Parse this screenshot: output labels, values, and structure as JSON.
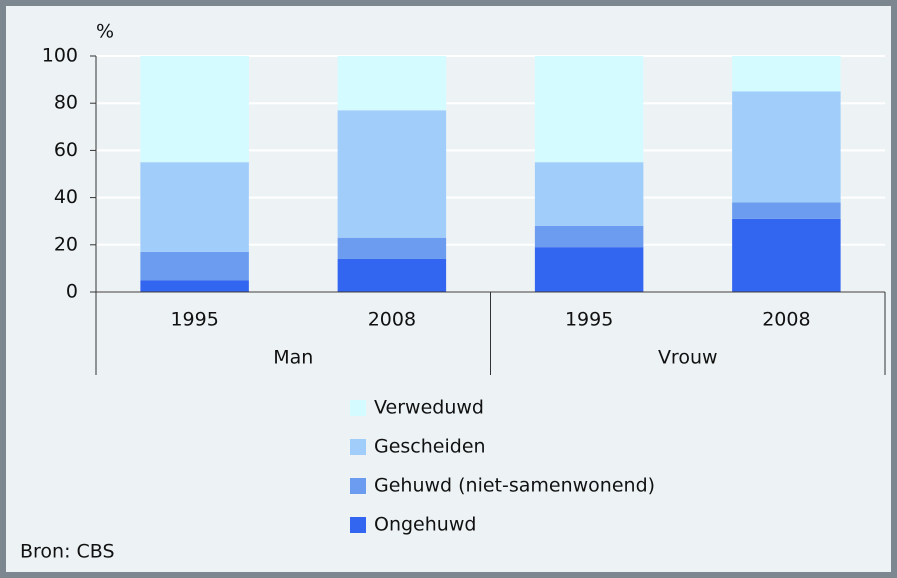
{
  "chart_data": {
    "type": "stacked-bar",
    "y_label": "%",
    "categories": [
      "1995",
      "2008",
      "1995",
      "2008"
    ],
    "groups": [
      "Man",
      "Vrouw"
    ],
    "series": [
      {
        "name": "Ongehuwd",
        "color": "#3366f0",
        "values": [
          5,
          14,
          19,
          31
        ]
      },
      {
        "name": "Gehuwd (niet-samenwonend)",
        "color": "#6b9cf0",
        "values": [
          12,
          9,
          9,
          7
        ]
      },
      {
        "name": "Gescheiden",
        "color": "#a0cdfa",
        "values": [
          38,
          54,
          27,
          47
        ]
      },
      {
        "name": "Verweduwd",
        "color": "#d4fbff",
        "values": [
          45,
          23,
          45,
          15
        ]
      }
    ],
    "ylim": [
      0,
      100
    ],
    "yticks": [
      0,
      20,
      40,
      60,
      80,
      100
    ],
    "grid": true,
    "source": "Bron: CBS"
  }
}
